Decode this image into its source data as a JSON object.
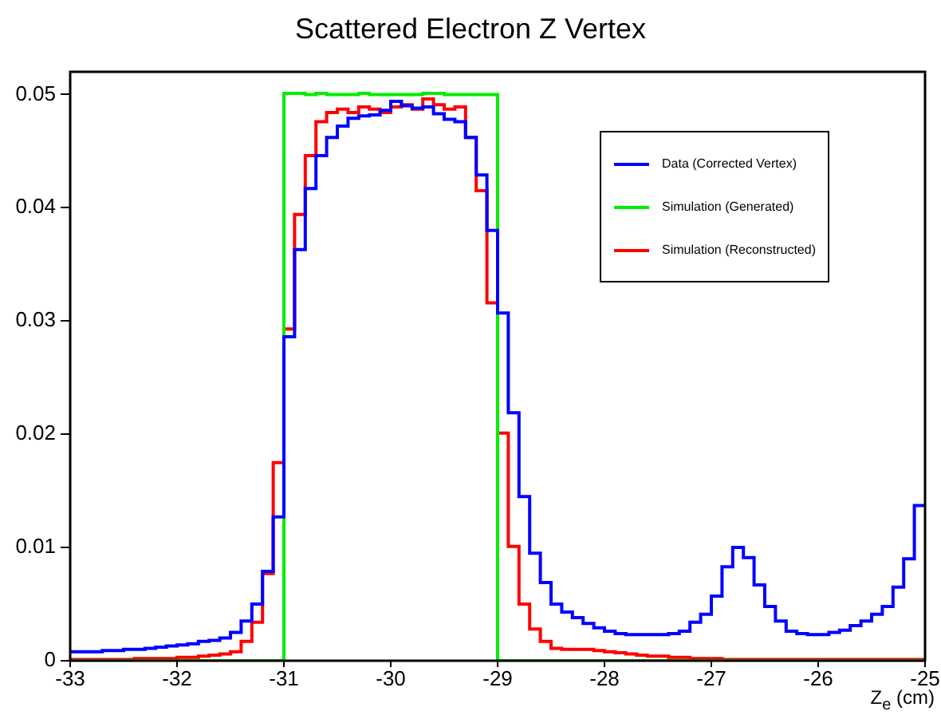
{
  "chart_data": {
    "type": "histogram",
    "title": "Scattered Electron Z Vertex",
    "xlabel": "Z$_{e}$ (cm)",
    "bins": [
      -33,
      -32.9,
      -32.8,
      -32.7,
      -32.6,
      -32.5,
      -32.4,
      -32.3,
      -32.2,
      -32.1,
      -32,
      -31.9,
      -31.8,
      -31.7,
      -31.6,
      -31.5,
      -31.4,
      -31.3,
      -31.2,
      -31.1,
      -31,
      -30.9,
      -30.8,
      -30.7,
      -30.6,
      -30.5,
      -30.4,
      -30.3,
      -30.2,
      -30.1,
      -30,
      -29.9,
      -29.8,
      -29.7,
      -29.6,
      -29.5,
      -29.4,
      -29.3,
      -29.2,
      -29.1,
      -29,
      -28.9,
      -28.8,
      -28.7,
      -28.6,
      -28.5,
      -28.4,
      -28.3,
      -28.2,
      -28.1,
      -28,
      -27.9,
      -27.8,
      -27.7,
      -27.6,
      -27.5,
      -27.4,
      -27.3,
      -27.2,
      -27.1,
      -27,
      -26.9,
      -26.8,
      -26.7,
      -26.6,
      -26.5,
      -26.4,
      -26.3,
      -26.2,
      -26.1,
      -26,
      -25.9,
      -25.8,
      -25.7,
      -25.6,
      -25.5,
      -25.4,
      -25.3,
      -25.2,
      -25.1,
      -25
    ],
    "series": [
      {
        "name": "Data (Corrected Vertex)",
        "color": "#0000ff",
        "values": [
          0.0008,
          0.0008,
          0.0008,
          0.0009,
          0.0009,
          0.001,
          0.001,
          0.0011,
          0.0012,
          0.0013,
          0.0014,
          0.0015,
          0.0017,
          0.0018,
          0.002,
          0.0025,
          0.0035,
          0.005,
          0.0079,
          0.0127,
          0.0286,
          0.0363,
          0.0417,
          0.0446,
          0.0462,
          0.0472,
          0.0479,
          0.0481,
          0.0482,
          0.0486,
          0.0494,
          0.049,
          0.0488,
          0.0489,
          0.0483,
          0.0478,
          0.0476,
          0.0462,
          0.0429,
          0.038,
          0.0307,
          0.0219,
          0.0145,
          0.0095,
          0.0069,
          0.005,
          0.0043,
          0.0038,
          0.0033,
          0.0029,
          0.0026,
          0.0024,
          0.0023,
          0.0023,
          0.0023,
          0.0023,
          0.0024,
          0.0026,
          0.0034,
          0.0041,
          0.0057,
          0.0083,
          0.01,
          0.0091,
          0.0067,
          0.0048,
          0.0035,
          0.0026,
          0.0024,
          0.0023,
          0.0023,
          0.0025,
          0.0027,
          0.0031,
          0.0035,
          0.0041,
          0.0048,
          0.0065,
          0.009,
          0.0137
        ]
      },
      {
        "name": "Simulation (Generated)",
        "color": "#00ee00",
        "values": [
          0,
          0,
          0,
          0,
          0,
          0,
          0,
          0,
          0,
          0,
          0,
          0,
          0,
          0,
          0,
          0,
          0,
          0,
          0,
          0,
          0.0501,
          0.0501,
          0.05,
          0.0501,
          0.05,
          0.05,
          0.05,
          0.0501,
          0.05,
          0.05,
          0.05,
          0.05,
          0.05,
          0.0501,
          0.0501,
          0.05,
          0.05,
          0.05,
          0.05,
          0.05,
          0,
          0,
          0,
          0,
          0,
          0,
          0,
          0,
          0,
          0,
          0,
          0,
          0,
          0,
          0,
          0,
          0,
          0,
          0,
          0,
          0,
          0,
          0,
          0,
          0,
          0,
          0,
          0,
          0,
          0,
          0,
          0,
          0,
          0,
          0,
          0,
          0,
          0,
          0,
          0
        ]
      },
      {
        "name": "Simulation (Reconstructed)",
        "color": "#ff0000",
        "values": [
          0.0001,
          0.0001,
          0.0001,
          0.0001,
          0.0001,
          0.0001,
          0.0002,
          0.0002,
          0.0002,
          0.0002,
          0.0003,
          0.0003,
          0.0004,
          0.0005,
          0.0006,
          0.0008,
          0.0017,
          0.0034,
          0.0077,
          0.0175,
          0.0293,
          0.0394,
          0.0446,
          0.0476,
          0.0484,
          0.0487,
          0.0484,
          0.0489,
          0.0487,
          0.0484,
          0.0489,
          0.0491,
          0.0487,
          0.0496,
          0.0491,
          0.0487,
          0.0489,
          0.0462,
          0.0415,
          0.0316,
          0.0201,
          0.0101,
          0.005,
          0.0028,
          0.0017,
          0.0011,
          0.001,
          0.001,
          0.001,
          0.0009,
          0.0008,
          0.0007,
          0.0006,
          0.0005,
          0.0004,
          0.0004,
          0.0003,
          0.0003,
          0.0002,
          0.0002,
          0.0002,
          0.0001,
          0.0001,
          0.0001,
          0.0001,
          0.0001,
          0.0001,
          0.0001,
          0.0001,
          0.0001,
          0.0001,
          0.0001,
          0.0001,
          0.0001,
          0.0001,
          0.0001,
          0.0001,
          0.0001,
          0.0001,
          0.0001
        ]
      }
    ],
    "xlim": [
      -33,
      -25
    ],
    "xticks": [
      -33,
      -32,
      -31,
      -30,
      -29,
      -28,
      -27,
      -26,
      -25
    ],
    "ylim": [
      0,
      0.052
    ],
    "yticks": [
      0,
      0.01,
      0.02,
      0.03,
      0.04,
      0.05
    ],
    "legend": "top right",
    "grid": false
  }
}
